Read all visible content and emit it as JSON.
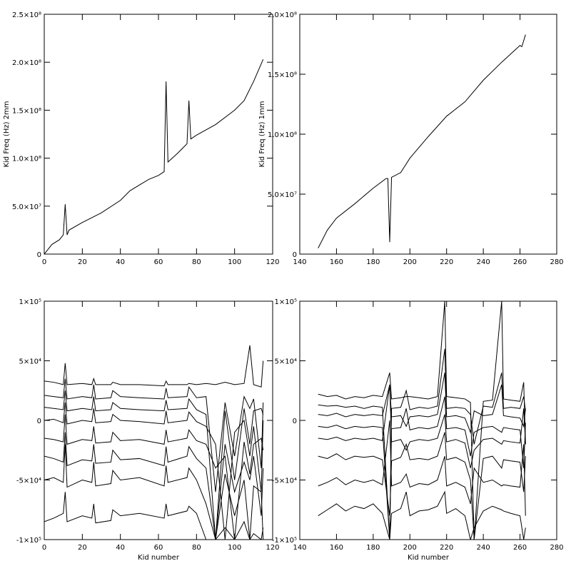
{
  "chart_data": [
    {
      "type": "line",
      "ylabel": "Kid Freq (Hz) 2mm",
      "color": "#000000",
      "xlim": [
        0,
        120
      ],
      "xticks": [
        0,
        20,
        40,
        60,
        80,
        100,
        120
      ],
      "ylim": [
        0,
        250000000
      ],
      "yticks": [
        0,
        {
          "value": 50000000,
          "label": "5.0×10⁷"
        },
        {
          "value": 100000000,
          "label": "1.0×10⁸"
        },
        {
          "value": 150000000,
          "label": "1.5×10⁸"
        },
        {
          "value": 200000000,
          "label": "2.0×10⁸"
        },
        {
          "value": 250000000,
          "label": "2.5×10⁸"
        }
      ],
      "x": [
        0,
        2,
        4,
        8,
        10,
        11,
        12,
        13,
        20,
        30,
        40,
        45,
        50,
        55,
        60,
        63,
        64,
        65,
        70,
        75,
        76,
        77,
        80,
        90,
        100,
        105,
        110,
        115
      ],
      "series": [
        {
          "values": [
            0,
            5000000,
            10000000,
            15000000,
            20000000,
            52000000,
            20000000,
            25000000,
            33000000,
            43000000,
            56000000,
            66000000,
            72000000,
            78000000,
            82000000,
            86000000,
            180000000,
            96000000,
            105000000,
            115000000,
            160000000,
            120000000,
            124000000,
            135000000,
            150000000,
            160000000,
            180000000,
            203000000
          ]
        }
      ]
    },
    {
      "type": "line",
      "ylabel": "Kid Freq (Hz) 1mm",
      "color": "#000000",
      "xlim": [
        140,
        280
      ],
      "xticks": [
        140,
        160,
        180,
        200,
        220,
        240,
        260,
        280
      ],
      "ylim": [
        0,
        200000000
      ],
      "yticks": [
        0,
        {
          "value": 50000000,
          "label": "5.0×10⁷"
        },
        {
          "value": 100000000,
          "label": "1.0×10⁸"
        },
        {
          "value": 150000000,
          "label": "1.5×10⁸"
        },
        {
          "value": 200000000,
          "label": "2.0×10⁸"
        }
      ],
      "x": [
        150,
        155,
        160,
        170,
        180,
        187,
        188,
        189,
        190,
        195,
        200,
        210,
        220,
        230,
        240,
        250,
        260,
        261,
        263
      ],
      "series": [
        {
          "values": [
            5000000,
            20000000,
            30000000,
            42000000,
            55000000,
            63000000,
            63000000,
            10000000,
            64000000,
            68000000,
            80000000,
            98000000,
            115000000,
            127000000,
            145000000,
            160000000,
            174000000,
            173000000,
            183000000
          ]
        }
      ]
    },
    {
      "type": "line",
      "xlabel": "Kid number",
      "color": "#000000",
      "xlim": [
        0,
        120
      ],
      "xticks": [
        0,
        20,
        40,
        60,
        80,
        100,
        120
      ],
      "ylim": [
        -100000,
        100000
      ],
      "yticks": [
        {
          "value": -100000,
          "label": "-1×10⁵"
        },
        {
          "value": -50000,
          "label": "-5×10⁴"
        },
        0,
        {
          "value": 50000,
          "label": "5×10⁴"
        },
        {
          "value": 100000,
          "label": "1×10⁵"
        }
      ],
      "x": [
        0,
        5,
        10,
        11,
        12,
        20,
        25,
        26,
        27,
        35,
        36,
        40,
        50,
        63,
        64,
        65,
        75,
        76,
        80,
        85,
        90,
        95,
        100,
        105,
        108,
        110,
        114,
        115
      ],
      "series": [
        {
          "values": [
            33000,
            32000,
            30000,
            48000,
            30000,
            31000,
            30000,
            35000,
            30000,
            30000,
            32000,
            30000,
            30000,
            29000,
            33000,
            30000,
            30000,
            31000,
            30000,
            31000,
            30000,
            32000,
            30000,
            31000,
            63000,
            30000,
            28000,
            50000
          ]
        },
        {
          "values": [
            21000,
            20000,
            19000,
            35000,
            18000,
            20000,
            19000,
            30000,
            18000,
            19000,
            25000,
            20000,
            19000,
            18000,
            27000,
            19000,
            20000,
            28000,
            19000,
            20000,
            -60000,
            15000,
            -30000,
            20000,
            10000,
            18000,
            -40000,
            15000
          ]
        },
        {
          "values": [
            11000,
            10000,
            9000,
            25000,
            8000,
            10000,
            9000,
            20000,
            8000,
            9000,
            15000,
            10000,
            9000,
            8000,
            17000,
            9000,
            10000,
            18000,
            9000,
            5000,
            -100000,
            8000,
            -50000,
            10000,
            -20000,
            8000,
            10000,
            5000
          ]
        },
        {
          "values": [
            0,
            1000,
            -2000,
            15000,
            -3000,
            0,
            -1000,
            10000,
            -2000,
            -1000,
            5000,
            0,
            -1000,
            -3000,
            8000,
            -2000,
            0,
            7000,
            -1000,
            -5000,
            -20000,
            -100000,
            -10000,
            0,
            -30000,
            -5000,
            -60000,
            0
          ]
        },
        {
          "values": [
            -15000,
            -16000,
            -18000,
            5000,
            -20000,
            -16000,
            -17000,
            -5000,
            -19000,
            -18000,
            -10000,
            -17000,
            -16000,
            -20000,
            -8000,
            -18000,
            -15000,
            -8000,
            -17000,
            -20000,
            -40000,
            -30000,
            -100000,
            -18000,
            -45000,
            -20000,
            -15000,
            -25000
          ]
        },
        {
          "values": [
            -30000,
            -32000,
            -35000,
            -10000,
            -38000,
            -33000,
            -34000,
            -20000,
            -36000,
            -35000,
            -25000,
            -33000,
            -32000,
            -38000,
            -22000,
            -35000,
            -30000,
            -22000,
            -32000,
            -40000,
            -100000,
            -20000,
            -60000,
            -35000,
            -50000,
            -30000,
            -80000,
            -40000
          ]
        },
        {
          "values": [
            -50000,
            -48000,
            -52000,
            -20000,
            -56000,
            -50000,
            -52000,
            -35000,
            -55000,
            -53000,
            -42000,
            -50000,
            -48000,
            -55000,
            -38000,
            -52000,
            -48000,
            -40000,
            -50000,
            -70000,
            -100000,
            -45000,
            -80000,
            -50000,
            -100000,
            -55000,
            -60000,
            -100000
          ]
        },
        {
          "values": [
            -85000,
            -82000,
            -78000,
            -60000,
            -85000,
            -80000,
            -82000,
            -70000,
            -86000,
            -84000,
            -75000,
            -80000,
            -78000,
            -82000,
            -70000,
            -80000,
            -76000,
            -72000,
            -78000,
            -100000,
            -100000,
            -90000,
            -100000,
            -85000,
            -100000,
            -95000,
            -100000,
            -90000
          ]
        }
      ]
    },
    {
      "type": "line",
      "xlabel": "Kid number",
      "color": "#000000",
      "xlim": [
        140,
        280
      ],
      "xticks": [
        140,
        160,
        180,
        200,
        220,
        240,
        260,
        280
      ],
      "ylim": [
        -100000,
        100000
      ],
      "yticks": [
        {
          "value": -100000,
          "label": "-1×10⁵"
        },
        {
          "value": -50000,
          "label": "-5×10⁴"
        },
        0,
        {
          "value": 50000,
          "label": "5×10⁴"
        },
        {
          "value": 100000,
          "label": "1×10⁵"
        }
      ],
      "x": [
        150,
        155,
        160,
        165,
        170,
        175,
        180,
        185,
        189,
        190,
        195,
        198,
        200,
        205,
        210,
        215,
        219,
        220,
        225,
        230,
        233,
        235,
        240,
        245,
        250,
        251,
        255,
        260,
        262,
        263
      ],
      "series": [
        {
          "values": [
            22000,
            20000,
            21000,
            18000,
            20000,
            19000,
            21000,
            20000,
            40000,
            18000,
            19000,
            20000,
            20000,
            19000,
            18000,
            20000,
            100000,
            20000,
            19000,
            18000,
            15000,
            -100000,
            16000,
            17000,
            100000,
            18000,
            17000,
            16000,
            32000,
            -20000
          ]
        },
        {
          "values": [
            13000,
            12000,
            12500,
            11000,
            12000,
            10000,
            12000,
            11000,
            -100000,
            10000,
            11000,
            25000,
            9000,
            11000,
            10000,
            12000,
            60000,
            10000,
            11000,
            10000,
            5000,
            -20000,
            12000,
            11000,
            40000,
            10000,
            11000,
            10000,
            20000,
            8000
          ]
        },
        {
          "values": [
            5000,
            4000,
            6000,
            3000,
            5000,
            4000,
            5000,
            4000,
            30000,
            3000,
            4000,
            -5000,
            3000,
            4000,
            3000,
            5000,
            40000,
            3000,
            4000,
            2000,
            -10000,
            8000,
            4000,
            5000,
            30000,
            4000,
            3000,
            2000,
            -5000,
            10000
          ]
        },
        {
          "values": [
            -5000,
            -6000,
            -4000,
            -7000,
            -5000,
            -6000,
            -5000,
            -6000,
            -100000,
            -7000,
            -6000,
            10000,
            -8000,
            -6000,
            -7000,
            -5000,
            20000,
            -7000,
            -6000,
            -8000,
            -30000,
            -10000,
            -6000,
            -5000,
            -10000,
            -6000,
            -7000,
            -8000,
            -40000,
            -2000
          ]
        },
        {
          "values": [
            -15000,
            -16000,
            -14000,
            -17000,
            -15000,
            -16000,
            -15000,
            -17000,
            30000,
            -18000,
            -16000,
            -25000,
            -18000,
            -16000,
            -17000,
            -15000,
            5000,
            -18000,
            -16000,
            -19000,
            -40000,
            -25000,
            -16000,
            -15000,
            -20000,
            -17000,
            -18000,
            -19000,
            10000,
            -20000
          ]
        },
        {
          "values": [
            -30000,
            -32000,
            -28000,
            -33000,
            -30000,
            -31000,
            -30000,
            -33000,
            -80000,
            -34000,
            -31000,
            -20000,
            -33000,
            -32000,
            -33000,
            -30000,
            -10000,
            -33000,
            -31000,
            -35000,
            -50000,
            -100000,
            -32000,
            -30000,
            -40000,
            -33000,
            -34000,
            -35000,
            -60000,
            -30000
          ]
        },
        {
          "values": [
            -55000,
            -52000,
            -48000,
            -54000,
            -50000,
            -52000,
            -50000,
            -54000,
            0,
            -55000,
            -52000,
            -45000,
            -56000,
            -53000,
            -54000,
            -50000,
            -30000,
            -55000,
            -52000,
            -56000,
            -70000,
            -40000,
            -52000,
            -50000,
            -55000,
            -54000,
            -55000,
            -56000,
            -20000,
            -80000
          ]
        },
        {
          "values": [
            -80000,
            -75000,
            -70000,
            -76000,
            -72000,
            -74000,
            -70000,
            -78000,
            -100000,
            -78000,
            -74000,
            -60000,
            -80000,
            -76000,
            -75000,
            -72000,
            -60000,
            -78000,
            -74000,
            -80000,
            -100000,
            -90000,
            -76000,
            -72000,
            -75000,
            -76000,
            -78000,
            -80000,
            -100000,
            -90000
          ]
        }
      ]
    }
  ]
}
